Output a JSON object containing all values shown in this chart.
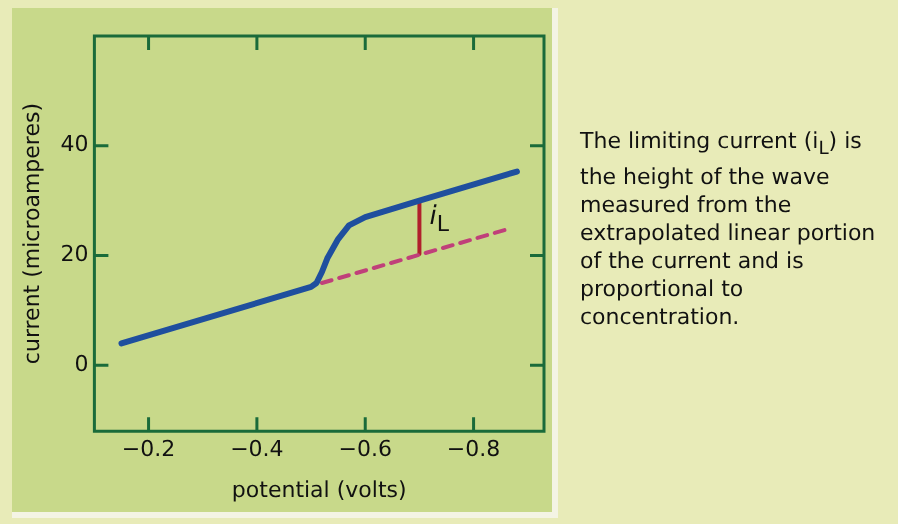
{
  "chart_data": {
    "type": "line",
    "xlabel": "potential (volts)",
    "ylabel": "current (microamperes)",
    "xlim": [
      -0.1,
      -0.93
    ],
    "xticks": [
      -0.2,
      -0.4,
      -0.6,
      -0.8
    ],
    "ylim": [
      -12,
      60
    ],
    "yticks": [
      0,
      20,
      40
    ],
    "grid": false,
    "legend": false,
    "marker": "none",
    "series": [
      {
        "color": "#1f4f9e",
        "x": [
          -0.15,
          -0.5,
          -0.51,
          -0.52,
          -0.53,
          -0.55,
          -0.57,
          -0.6,
          -0.7,
          -0.88
        ],
        "values": [
          4,
          14.3,
          15,
          17,
          19.5,
          23,
          25.5,
          27,
          30,
          35.3
        ],
        "line_style": "solid"
      },
      {
        "color": "#c0407a",
        "x": [
          -0.52,
          -0.87
        ],
        "values": [
          15,
          25
        ],
        "line_style": "dashed"
      },
      {
        "color": "#b0202c",
        "x": [
          -0.7,
          -0.7
        ],
        "values": [
          20.3,
          30
        ],
        "line_style": "solid"
      }
    ],
    "annotations": [
      {
        "text": "i$_{L}$",
        "x": -0.7,
        "y": 27
      },
      "The limiting current (i$_{L}$) is the height of the wave measured from the extrapolated linear portion of the current and is proportional to concentration."
    ]
  }
}
